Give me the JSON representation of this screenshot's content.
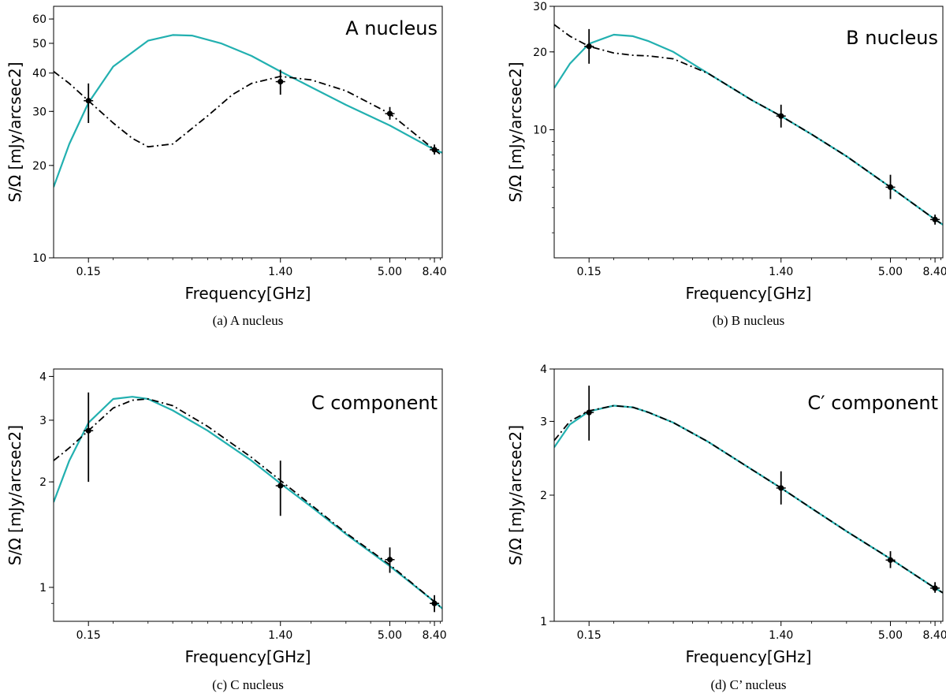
{
  "colors": {
    "model_solid": "#22b0b0",
    "model_dashdot": "#000000",
    "points": "#000000"
  },
  "chart_data": [
    {
      "type": "line",
      "title": "A nucleus",
      "caption": "(a) A nucleus",
      "xlabel": "Frequency[GHz]",
      "ylabel": "S/Ω [mJy/arcsec2]",
      "xscale": "log",
      "yscale": "log",
      "xlim": [
        0.1,
        9.2
      ],
      "ylim": [
        10,
        66
      ],
      "xticks": [
        {
          "v": 0.15,
          "label": "0.15"
        },
        {
          "v": 1.4,
          "label": "1.40"
        },
        {
          "v": 5.0,
          "label": "5.00"
        },
        {
          "v": 8.4,
          "label": "8.40"
        }
      ],
      "yticks": [
        {
          "v": 10,
          "label": "10"
        },
        {
          "v": 20,
          "label": "20"
        },
        {
          "v": 30,
          "label": "30"
        },
        {
          "v": 40,
          "label": "40"
        },
        {
          "v": 50,
          "label": "50"
        },
        {
          "v": 60,
          "label": "60"
        }
      ],
      "label_position": "top-right",
      "data_points": [
        {
          "x": 0.15,
          "y": 32.5,
          "err_low": 27.5,
          "err_high": 37.0
        },
        {
          "x": 1.4,
          "y": 37.5,
          "err_low": 34.0,
          "err_high": 41.0
        },
        {
          "x": 5.0,
          "y": 29.5,
          "err_low": 28.2,
          "err_high": 31.0
        },
        {
          "x": 8.4,
          "y": 22.5,
          "err_low": 21.7,
          "err_high": 23.4
        }
      ],
      "series": [
        {
          "name": "model-solid",
          "style": "solid",
          "x": [
            0.1,
            0.12,
            0.15,
            0.2,
            0.3,
            0.4,
            0.5,
            0.7,
            1.0,
            1.4,
            2.0,
            3.0,
            5.0,
            8.4,
            9.2
          ],
          "y": [
            17.0,
            23.5,
            32.0,
            42.0,
            51.0,
            53.2,
            53.0,
            50.0,
            45.5,
            40.5,
            36.0,
            31.5,
            27.0,
            22.5,
            22.0
          ]
        },
        {
          "name": "model-dashdot",
          "style": "dashdot",
          "x": [
            0.1,
            0.12,
            0.15,
            0.2,
            0.25,
            0.3,
            0.4,
            0.6,
            0.8,
            1.0,
            1.4,
            2.0,
            3.0,
            5.0,
            8.4,
            9.2
          ],
          "y": [
            40.5,
            37.0,
            32.5,
            27.5,
            24.5,
            23.0,
            23.5,
            29.0,
            34.0,
            37.0,
            39.0,
            38.0,
            35.0,
            29.5,
            22.5,
            21.5
          ]
        }
      ]
    },
    {
      "type": "line",
      "title": "B nucleus",
      "caption": "(b) B nucleus",
      "xlabel": "Frequency[GHz]",
      "ylabel": "S/Ω [mJy/arcsec2]",
      "xscale": "log",
      "yscale": "log",
      "xlim": [
        0.1,
        9.2
      ],
      "ylim": [
        3.2,
        30
      ],
      "xticks": [
        {
          "v": 0.15,
          "label": "0.15"
        },
        {
          "v": 1.4,
          "label": "1.40"
        },
        {
          "v": 5.0,
          "label": "5.00"
        },
        {
          "v": 8.4,
          "label": "8.40"
        }
      ],
      "yticks": [
        {
          "v": 10,
          "label": "10"
        },
        {
          "v": 20,
          "label": "20"
        },
        {
          "v": 30,
          "label": "30"
        }
      ],
      "label_position": "top-right",
      "data_points": [
        {
          "x": 0.15,
          "y": 21.0,
          "err_low": 18.0,
          "err_high": 24.5
        },
        {
          "x": 1.4,
          "y": 11.3,
          "err_low": 10.2,
          "err_high": 12.5
        },
        {
          "x": 5.0,
          "y": 6.0,
          "err_low": 5.4,
          "err_high": 6.7
        },
        {
          "x": 8.4,
          "y": 4.5,
          "err_low": 4.3,
          "err_high": 4.7
        }
      ],
      "series": [
        {
          "name": "model-solid",
          "style": "solid",
          "x": [
            0.1,
            0.12,
            0.15,
            0.2,
            0.25,
            0.3,
            0.4,
            0.6,
            1.0,
            1.4,
            2.0,
            3.0,
            5.0,
            8.4,
            9.2
          ],
          "y": [
            14.5,
            18.0,
            21.5,
            23.3,
            23.0,
            22.0,
            20.0,
            16.5,
            13.0,
            11.3,
            9.6,
            7.9,
            6.0,
            4.5,
            4.3
          ]
        },
        {
          "name": "model-dashdot",
          "style": "dashdot",
          "x": [
            0.1,
            0.12,
            0.15,
            0.2,
            0.25,
            0.3,
            0.4,
            0.6,
            1.0,
            1.4,
            2.0,
            3.0,
            5.0,
            8.4,
            9.2
          ],
          "y": [
            25.5,
            23.0,
            21.0,
            19.8,
            19.4,
            19.3,
            18.8,
            16.5,
            13.0,
            11.3,
            9.6,
            7.9,
            6.0,
            4.5,
            4.3
          ]
        }
      ]
    },
    {
      "type": "line",
      "title": "C component",
      "caption": "(c) C nucleus",
      "xlabel": "Frequency[GHz]",
      "ylabel": "S/Ω [mJy/arcsec2]",
      "xscale": "log",
      "yscale": "log",
      "xlim": [
        0.1,
        9.2
      ],
      "ylim": [
        0.8,
        4.2
      ],
      "xticks": [
        {
          "v": 0.15,
          "label": "0.15"
        },
        {
          "v": 1.4,
          "label": "1.40"
        },
        {
          "v": 5.0,
          "label": "5.00"
        },
        {
          "v": 8.4,
          "label": "8.40"
        }
      ],
      "yticks": [
        {
          "v": 1,
          "label": "1"
        },
        {
          "v": 2,
          "label": "2"
        },
        {
          "v": 3,
          "label": "3"
        },
        {
          "v": 4,
          "label": "4"
        }
      ],
      "label_position": "top-right",
      "data_points": [
        {
          "x": 0.15,
          "y": 2.8,
          "err_low": 2.0,
          "err_high": 3.6
        },
        {
          "x": 1.4,
          "y": 1.95,
          "err_low": 1.6,
          "err_high": 2.3
        },
        {
          "x": 5.0,
          "y": 1.2,
          "err_low": 1.1,
          "err_high": 1.3
        },
        {
          "x": 8.4,
          "y": 0.9,
          "err_low": 0.85,
          "err_high": 0.95
        }
      ],
      "series": [
        {
          "name": "model-solid",
          "style": "solid",
          "x": [
            0.1,
            0.12,
            0.15,
            0.2,
            0.25,
            0.3,
            0.4,
            0.6,
            1.0,
            1.4,
            2.0,
            3.0,
            5.0,
            8.4,
            9.2
          ],
          "y": [
            1.75,
            2.3,
            2.95,
            3.45,
            3.5,
            3.45,
            3.2,
            2.8,
            2.3,
            1.98,
            1.7,
            1.42,
            1.15,
            0.91,
            0.87
          ]
        },
        {
          "name": "model-dashdot",
          "style": "dashdot",
          "x": [
            0.1,
            0.12,
            0.15,
            0.2,
            0.25,
            0.3,
            0.4,
            0.6,
            1.0,
            1.4,
            2.0,
            3.0,
            5.0,
            8.4,
            9.2
          ],
          "y": [
            2.3,
            2.5,
            2.8,
            3.25,
            3.42,
            3.45,
            3.3,
            2.88,
            2.35,
            2.02,
            1.72,
            1.43,
            1.16,
            0.91,
            0.87
          ]
        }
      ]
    },
    {
      "type": "line",
      "title": "C′ component",
      "caption": "(d) C’ nucleus",
      "xlabel": "Frequency[GHz]",
      "ylabel": "S/Ω [mJy/arcsec2]",
      "xscale": "log",
      "yscale": "log",
      "xlim": [
        0.1,
        9.2
      ],
      "ylim": [
        1,
        4
      ],
      "xticks": [
        {
          "v": 0.15,
          "label": "0.15"
        },
        {
          "v": 1.4,
          "label": "1.40"
        },
        {
          "v": 5.0,
          "label": "5.00"
        },
        {
          "v": 8.4,
          "label": "8.40"
        }
      ],
      "yticks": [
        {
          "v": 1,
          "label": "1"
        },
        {
          "v": 2,
          "label": "2"
        },
        {
          "v": 3,
          "label": "3"
        },
        {
          "v": 4,
          "label": "4"
        }
      ],
      "label_position": "top-right",
      "data_points": [
        {
          "x": 0.15,
          "y": 3.15,
          "err_low": 2.7,
          "err_high": 3.65
        },
        {
          "x": 1.4,
          "y": 2.08,
          "err_low": 1.9,
          "err_high": 2.28
        },
        {
          "x": 5.0,
          "y": 1.4,
          "err_low": 1.34,
          "err_high": 1.47
        },
        {
          "x": 8.4,
          "y": 1.2,
          "err_low": 1.17,
          "err_high": 1.24
        }
      ],
      "series": [
        {
          "name": "model-solid",
          "style": "solid",
          "x": [
            0.1,
            0.12,
            0.15,
            0.2,
            0.25,
            0.3,
            0.4,
            0.6,
            1.0,
            1.4,
            2.0,
            3.0,
            5.0,
            8.4,
            9.2
          ],
          "y": [
            2.6,
            2.95,
            3.17,
            3.27,
            3.24,
            3.15,
            2.98,
            2.68,
            2.3,
            2.08,
            1.86,
            1.64,
            1.41,
            1.2,
            1.17
          ]
        },
        {
          "name": "model-dashdot",
          "style": "dashdot",
          "x": [
            0.1,
            0.12,
            0.15,
            0.2,
            0.25,
            0.3,
            0.4,
            0.6,
            1.0,
            1.4,
            2.0,
            3.0,
            5.0,
            8.4,
            9.2
          ],
          "y": [
            2.7,
            3.0,
            3.18,
            3.27,
            3.24,
            3.15,
            2.98,
            2.68,
            2.3,
            2.08,
            1.86,
            1.64,
            1.41,
            1.2,
            1.17
          ]
        }
      ]
    }
  ]
}
